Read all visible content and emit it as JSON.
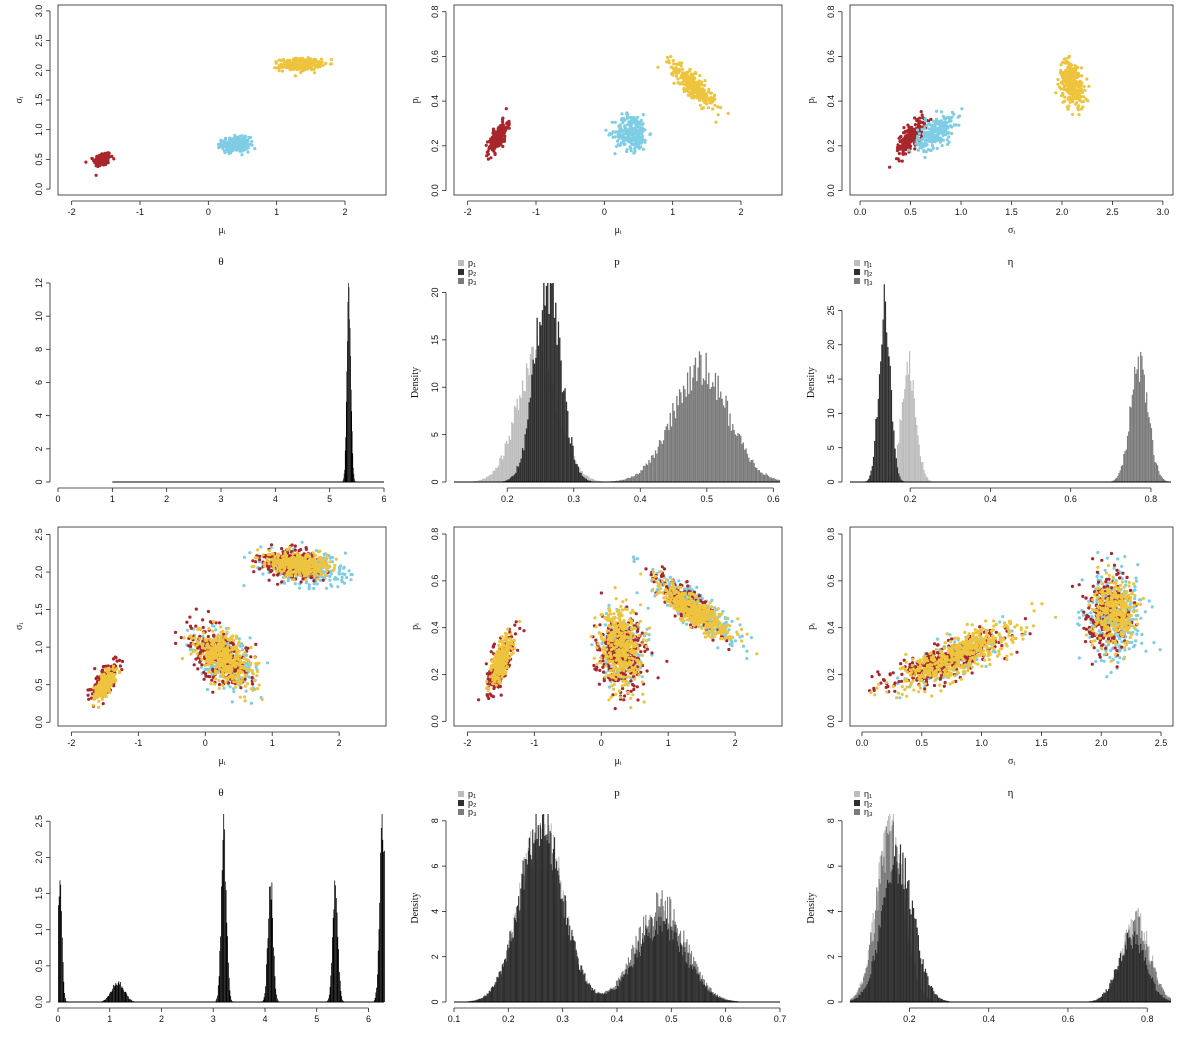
{
  "colors": {
    "red": "#a8262c",
    "blue": "#7fcde4",
    "yellow": "#eec43e",
    "light": "#bdbdbd",
    "dark": "#2e2e2e",
    "mid": "#7a7a7a",
    "black": "#000000"
  },
  "chart_data": [
    {
      "id": "s1",
      "type": "scatter",
      "title": "",
      "xlabel": "μᵢ",
      "ylabel": "σᵢ",
      "xlim": [
        -2.2,
        2.6
      ],
      "ylim": [
        -0.1,
        3.1
      ],
      "frame": true,
      "xticks": [
        -2,
        -1,
        0,
        1,
        2
      ],
      "xtick_labels": [
        "-2",
        "-1",
        "0",
        "1",
        "2"
      ],
      "yticks": [
        0,
        0.5,
        1,
        1.5,
        2,
        2.5,
        3
      ],
      "ytick_labels": [
        "0.0",
        "0.5",
        "1.0",
        "1.5",
        "2.0",
        "2.5",
        "3.0"
      ],
      "clusters": [
        {
          "color": "red",
          "cx": -1.55,
          "cy": 0.5,
          "sx": 0.06,
          "sy": 0.06,
          "rho": 0.3,
          "n": 200
        },
        {
          "color": "blue",
          "cx": 0.4,
          "cy": 0.75,
          "sx": 0.1,
          "sy": 0.06,
          "rho": 0.0,
          "n": 250
        },
        {
          "color": "yellow",
          "cx": 1.35,
          "cy": 2.1,
          "sx": 0.15,
          "sy": 0.05,
          "rho": 0.1,
          "n": 300
        }
      ]
    },
    {
      "id": "s2",
      "type": "scatter",
      "title": "",
      "xlabel": "μᵢ",
      "ylabel": "pᵢ",
      "xlim": [
        -2.2,
        2.6
      ],
      "ylim": [
        -0.02,
        0.83
      ],
      "frame": true,
      "xticks": [
        -2,
        -1,
        0,
        1,
        2
      ],
      "xtick_labels": [
        "-2",
        "-1",
        "0",
        "1",
        "2"
      ],
      "yticks": [
        0,
        0.2,
        0.4,
        0.6,
        0.8
      ],
      "ytick_labels": [
        "0.0",
        "0.2",
        "0.4",
        "0.6",
        "0.8"
      ],
      "clusters": [
        {
          "color": "red",
          "cx": -1.55,
          "cy": 0.24,
          "sx": 0.07,
          "sy": 0.035,
          "rho": 0.7,
          "n": 200
        },
        {
          "color": "blue",
          "cx": 0.4,
          "cy": 0.26,
          "sx": 0.12,
          "sy": 0.04,
          "rho": 0.0,
          "n": 250
        },
        {
          "color": "yellow",
          "cx": 1.3,
          "cy": 0.47,
          "sx": 0.16,
          "sy": 0.05,
          "rho": -0.85,
          "n": 300
        }
      ]
    },
    {
      "id": "s3",
      "type": "scatter",
      "title": "",
      "xlabel": "σᵢ",
      "ylabel": "pᵢ",
      "xlim": [
        -0.1,
        3.1
      ],
      "ylim": [
        -0.02,
        0.83
      ],
      "frame": true,
      "xticks": [
        0,
        0.5,
        1,
        1.5,
        2,
        2.5,
        3
      ],
      "xtick_labels": [
        "0.0",
        "0.5",
        "1.0",
        "1.5",
        "2.0",
        "2.5",
        "3.0"
      ],
      "yticks": [
        0,
        0.2,
        0.4,
        0.6,
        0.8
      ],
      "ytick_labels": [
        "0.0",
        "0.2",
        "0.4",
        "0.6",
        "0.8"
      ],
      "clusters": [
        {
          "color": "red",
          "cx": 0.5,
          "cy": 0.24,
          "sx": 0.07,
          "sy": 0.04,
          "rho": 0.7,
          "n": 200
        },
        {
          "color": "blue",
          "cx": 0.75,
          "cy": 0.26,
          "sx": 0.09,
          "sy": 0.04,
          "rho": 0.6,
          "n": 250
        },
        {
          "color": "yellow",
          "cx": 2.1,
          "cy": 0.48,
          "sx": 0.06,
          "sy": 0.05,
          "rho": -0.3,
          "n": 300
        }
      ]
    },
    {
      "id": "h1",
      "type": "histogram",
      "title": "θ",
      "xlabel": "",
      "ylabel": "",
      "xlim": [
        0,
        6
      ],
      "ylim": [
        0,
        12
      ],
      "frame": false,
      "xticks": [
        0,
        1,
        2,
        3,
        4,
        5,
        6
      ],
      "xtick_labels": [
        "0",
        "1",
        "2",
        "3",
        "4",
        "5",
        "6"
      ],
      "yticks": [
        0,
        2,
        4,
        6,
        8,
        10,
        12
      ],
      "ytick_labels": [
        "0",
        "2",
        "4",
        "6",
        "8",
        "10",
        "12"
      ],
      "bin_width": 0.01,
      "baseline_from": 1.0,
      "baseline_to": 6.0,
      "series": [
        {
          "color": "black",
          "peaks": [
            {
              "mu": 5.35,
              "sd": 0.035,
              "h": 11.9
            }
          ]
        }
      ]
    },
    {
      "id": "h2",
      "type": "histogram",
      "title": "p",
      "xlabel": "",
      "ylabel": "Density",
      "xlim": [
        0.12,
        0.61
      ],
      "ylim": [
        0,
        21
      ],
      "frame": false,
      "xticks": [
        0.2,
        0.3,
        0.4,
        0.5,
        0.6
      ],
      "xtick_labels": [
        "0.2",
        "0.3",
        "0.4",
        "0.5",
        "0.6"
      ],
      "yticks": [
        0,
        5,
        10,
        15,
        20
      ],
      "ytick_labels": [
        "0",
        "5",
        "10",
        "15",
        "20"
      ],
      "bin_width": 0.002,
      "legend": [
        "p₁",
        "p₂",
        "p₃"
      ],
      "series": [
        {
          "color": "light",
          "peaks": [
            {
              "mu": 0.245,
              "sd": 0.03,
              "h": 13.5
            }
          ]
        },
        {
          "color": "dark",
          "peaks": [
            {
              "mu": 0.26,
              "sd": 0.02,
              "h": 20.5
            }
          ]
        },
        {
          "color": "mid",
          "peaks": [
            {
              "mu": 0.49,
              "sd": 0.042,
              "h": 11.8
            }
          ]
        }
      ]
    },
    {
      "id": "h3",
      "type": "histogram",
      "title": "η",
      "xlabel": "",
      "ylabel": "Density",
      "xlim": [
        0.05,
        0.85
      ],
      "ylim": [
        0,
        29
      ],
      "frame": false,
      "xticks": [
        0.2,
        0.4,
        0.6,
        0.8
      ],
      "xtick_labels": [
        "0.2",
        "0.4",
        "0.6",
        "0.8"
      ],
      "yticks": [
        0,
        5,
        10,
        15,
        20,
        25
      ],
      "ytick_labels": [
        "0",
        "5",
        "10",
        "15",
        "20",
        "25"
      ],
      "bin_width": 0.003,
      "legend": [
        "η₁",
        "η₂",
        "η₃"
      ],
      "series": [
        {
          "color": "light",
          "peaks": [
            {
              "mu": 0.195,
              "sd": 0.018,
              "h": 16.5
            }
          ]
        },
        {
          "color": "dark",
          "peaks": [
            {
              "mu": 0.135,
              "sd": 0.014,
              "h": 27
            }
          ]
        },
        {
          "color": "mid",
          "peaks": [
            {
              "mu": 0.77,
              "sd": 0.022,
              "h": 17
            }
          ]
        }
      ]
    },
    {
      "id": "s4",
      "type": "scatter",
      "title": "",
      "xlabel": "μᵢ",
      "ylabel": "σᵢ",
      "xlim": [
        -2.2,
        2.7
      ],
      "ylim": [
        -0.05,
        2.6
      ],
      "frame": true,
      "xticks": [
        -2,
        -1,
        0,
        1,
        2
      ],
      "xtick_labels": [
        "-2",
        "-1",
        "0",
        "1",
        "2"
      ],
      "yticks": [
        0,
        0.5,
        1,
        1.5,
        2,
        2.5
      ],
      "ytick_labels": [
        "0.0",
        "0.5",
        "1.0",
        "1.5",
        "2.0",
        "2.5"
      ],
      "clusters": [
        {
          "color": "blue",
          "cx": 0.3,
          "cy": 0.85,
          "sx": 0.22,
          "sy": 0.18,
          "rho": -0.4,
          "n": 250
        },
        {
          "color": "blue",
          "cx": 1.5,
          "cy": 2.05,
          "sx": 0.3,
          "sy": 0.12,
          "rho": -0.2,
          "n": 300
        },
        {
          "color": "red",
          "cx": -1.5,
          "cy": 0.55,
          "sx": 0.1,
          "sy": 0.12,
          "rho": 0.7,
          "n": 220
        },
        {
          "color": "red",
          "cx": 0.2,
          "cy": 0.9,
          "sx": 0.22,
          "sy": 0.2,
          "rho": -0.5,
          "n": 280
        },
        {
          "color": "red",
          "cx": 1.3,
          "cy": 2.1,
          "sx": 0.22,
          "sy": 0.1,
          "rho": -0.2,
          "n": 250
        },
        {
          "color": "yellow",
          "cx": -1.5,
          "cy": 0.5,
          "sx": 0.08,
          "sy": 0.1,
          "rho": 0.7,
          "n": 250
        },
        {
          "color": "yellow",
          "cx": 0.3,
          "cy": 0.85,
          "sx": 0.2,
          "sy": 0.18,
          "rho": -0.5,
          "n": 400
        },
        {
          "color": "yellow",
          "cx": 1.4,
          "cy": 2.1,
          "sx": 0.24,
          "sy": 0.08,
          "rho": -0.2,
          "n": 400
        }
      ]
    },
    {
      "id": "s5",
      "type": "scatter",
      "title": "",
      "xlabel": "μᵢ",
      "ylabel": "pᵢ",
      "xlim": [
        -2.2,
        2.7
      ],
      "ylim": [
        -0.02,
        0.83
      ],
      "frame": true,
      "xticks": [
        -2,
        -1,
        0,
        1,
        2
      ],
      "xtick_labels": [
        "-2",
        "-1",
        "0",
        "1",
        "2"
      ],
      "yticks": [
        0,
        0.2,
        0.4,
        0.6,
        0.8
      ],
      "ytick_labels": [
        "0.0",
        "0.2",
        "0.4",
        "0.6",
        "0.8"
      ],
      "clusters": [
        {
          "color": "blue",
          "cx": 1.4,
          "cy": 0.48,
          "sx": 0.3,
          "sy": 0.07,
          "rho": -0.85,
          "n": 350
        },
        {
          "color": "blue",
          "cx": 0.3,
          "cy": 0.32,
          "sx": 0.15,
          "sy": 0.07,
          "rho": 0.0,
          "n": 200
        },
        {
          "color": "red",
          "cx": -1.5,
          "cy": 0.25,
          "sx": 0.1,
          "sy": 0.06,
          "rho": 0.7,
          "n": 250
        },
        {
          "color": "red",
          "cx": 0.3,
          "cy": 0.3,
          "sx": 0.18,
          "sy": 0.08,
          "rho": 0.0,
          "n": 300
        },
        {
          "color": "red",
          "cx": 1.3,
          "cy": 0.5,
          "sx": 0.22,
          "sy": 0.06,
          "rho": -0.8,
          "n": 200
        },
        {
          "color": "yellow",
          "cx": -1.5,
          "cy": 0.26,
          "sx": 0.08,
          "sy": 0.05,
          "rho": 0.7,
          "n": 280
        },
        {
          "color": "yellow",
          "cx": 0.3,
          "cy": 0.32,
          "sx": 0.15,
          "sy": 0.09,
          "rho": 0.0,
          "n": 400
        },
        {
          "color": "yellow",
          "cx": 1.4,
          "cy": 0.47,
          "sx": 0.27,
          "sy": 0.06,
          "rho": -0.85,
          "n": 400
        }
      ]
    },
    {
      "id": "s6",
      "type": "scatter",
      "title": "",
      "xlabel": "σᵢ",
      "ylabel": "pᵢ",
      "xlim": [
        -0.1,
        2.6
      ],
      "ylim": [
        -0.02,
        0.83
      ],
      "frame": true,
      "xticks": [
        0,
        0.5,
        1,
        1.5,
        2,
        2.5
      ],
      "xtick_labels": [
        "0.0",
        "0.5",
        "1.0",
        "1.5",
        "2.0",
        "2.5"
      ],
      "yticks": [
        0,
        0.2,
        0.4,
        0.6,
        0.8
      ],
      "ytick_labels": [
        "0.0",
        "0.2",
        "0.4",
        "0.6",
        "0.8"
      ],
      "clusters": [
        {
          "color": "blue",
          "cx": 2.1,
          "cy": 0.45,
          "sx": 0.12,
          "sy": 0.09,
          "rho": 0.0,
          "n": 350
        },
        {
          "color": "blue",
          "cx": 0.8,
          "cy": 0.28,
          "sx": 0.22,
          "sy": 0.06,
          "rho": 0.8,
          "n": 150
        },
        {
          "color": "red",
          "cx": 0.7,
          "cy": 0.26,
          "sx": 0.25,
          "sy": 0.06,
          "rho": 0.8,
          "n": 350
        },
        {
          "color": "red",
          "cx": 2.05,
          "cy": 0.47,
          "sx": 0.1,
          "sy": 0.08,
          "rho": 0.0,
          "n": 250
        },
        {
          "color": "yellow",
          "cx": 0.8,
          "cy": 0.28,
          "sx": 0.25,
          "sy": 0.07,
          "rho": 0.8,
          "n": 500
        },
        {
          "color": "yellow",
          "cx": 2.1,
          "cy": 0.46,
          "sx": 0.09,
          "sy": 0.07,
          "rho": 0.0,
          "n": 350
        }
      ]
    },
    {
      "id": "h4",
      "type": "histogram",
      "title": "θ",
      "xlabel": "",
      "ylabel": "",
      "xlim": [
        0,
        6.3
      ],
      "ylim": [
        0,
        2.6
      ],
      "frame": false,
      "xticks": [
        0,
        1,
        2,
        3,
        4,
        5,
        6
      ],
      "xtick_labels": [
        "0",
        "1",
        "2",
        "3",
        "4",
        "5",
        "6"
      ],
      "yticks": [
        0,
        0.5,
        1,
        1.5,
        2,
        2.5
      ],
      "ytick_labels": [
        "0.0",
        "0.5",
        "1.0",
        "1.5",
        "2.0",
        "2.5"
      ],
      "bin_width": 0.015,
      "baseline_from": 0.0,
      "baseline_to": 6.3,
      "series": [
        {
          "color": "black",
          "peaks": [
            {
              "mu": 0.03,
              "sd": 0.04,
              "h": 1.6
            },
            {
              "mu": 1.15,
              "sd": 0.12,
              "h": 0.28
            },
            {
              "mu": 3.2,
              "sd": 0.05,
              "h": 2.25
            },
            {
              "mu": 4.1,
              "sd": 0.05,
              "h": 1.6
            },
            {
              "mu": 5.35,
              "sd": 0.05,
              "h": 1.55
            },
            {
              "mu": 6.26,
              "sd": 0.05,
              "h": 2.55
            }
          ]
        }
      ]
    },
    {
      "id": "h5",
      "type": "histogram",
      "title": "p",
      "xlabel": "",
      "ylabel": "Density",
      "xlim": [
        0.1,
        0.7
      ],
      "ylim": [
        0,
        8.3
      ],
      "frame": false,
      "xticks": [
        0.1,
        0.2,
        0.3,
        0.4,
        0.5,
        0.6,
        0.7
      ],
      "xtick_labels": [
        "0.1",
        "0.2",
        "0.3",
        "0.4",
        "0.5",
        "0.6",
        "0.7"
      ],
      "yticks": [
        0,
        2,
        4,
        6,
        8
      ],
      "ytick_labels": [
        "0",
        "2",
        "4",
        "6",
        "8"
      ],
      "bin_width": 0.002,
      "legend": [
        "p₁",
        "p₂",
        "p₃"
      ],
      "series": [
        {
          "color": "light",
          "peaks": [
            {
              "mu": 0.26,
              "sd": 0.04,
              "h": 7.5
            },
            {
              "mu": 0.48,
              "sd": 0.045,
              "h": 3.5
            }
          ]
        },
        {
          "color": "mid",
          "peaks": [
            {
              "mu": 0.26,
              "sd": 0.04,
              "h": 7.0
            },
            {
              "mu": 0.48,
              "sd": 0.045,
              "h": 4.2
            }
          ]
        },
        {
          "color": "dark",
          "peaks": [
            {
              "mu": 0.26,
              "sd": 0.04,
              "h": 7.8
            },
            {
              "mu": 0.48,
              "sd": 0.045,
              "h": 3.5
            }
          ]
        }
      ]
    },
    {
      "id": "h6",
      "type": "histogram",
      "title": "η",
      "xlabel": "",
      "ylabel": "Density",
      "xlim": [
        0.05,
        0.86
      ],
      "ylim": [
        0,
        8.3
      ],
      "frame": false,
      "xticks": [
        0.2,
        0.4,
        0.6,
        0.8
      ],
      "xtick_labels": [
        "0.2",
        "0.4",
        "0.6",
        "0.8"
      ],
      "yticks": [
        0,
        2,
        4,
        6,
        8
      ],
      "ytick_labels": [
        "0",
        "2",
        "4",
        "6",
        "8"
      ],
      "bin_width": 0.003,
      "legend": [
        "η₁",
        "η₂",
        "η₃"
      ],
      "series": [
        {
          "color": "light",
          "peaks": [
            {
              "mu": 0.15,
              "sd": 0.035,
              "h": 7.5
            },
            {
              "mu": 0.77,
              "sd": 0.035,
              "h": 3.6
            }
          ]
        },
        {
          "color": "mid",
          "peaks": [
            {
              "mu": 0.15,
              "sd": 0.035,
              "h": 7.0
            },
            {
              "mu": 0.77,
              "sd": 0.035,
              "h": 3.4
            }
          ]
        },
        {
          "color": "dark",
          "peaks": [
            {
              "mu": 0.17,
              "sd": 0.04,
              "h": 6.0
            },
            {
              "mu": 0.76,
              "sd": 0.035,
              "h": 2.8
            }
          ]
        }
      ]
    }
  ]
}
